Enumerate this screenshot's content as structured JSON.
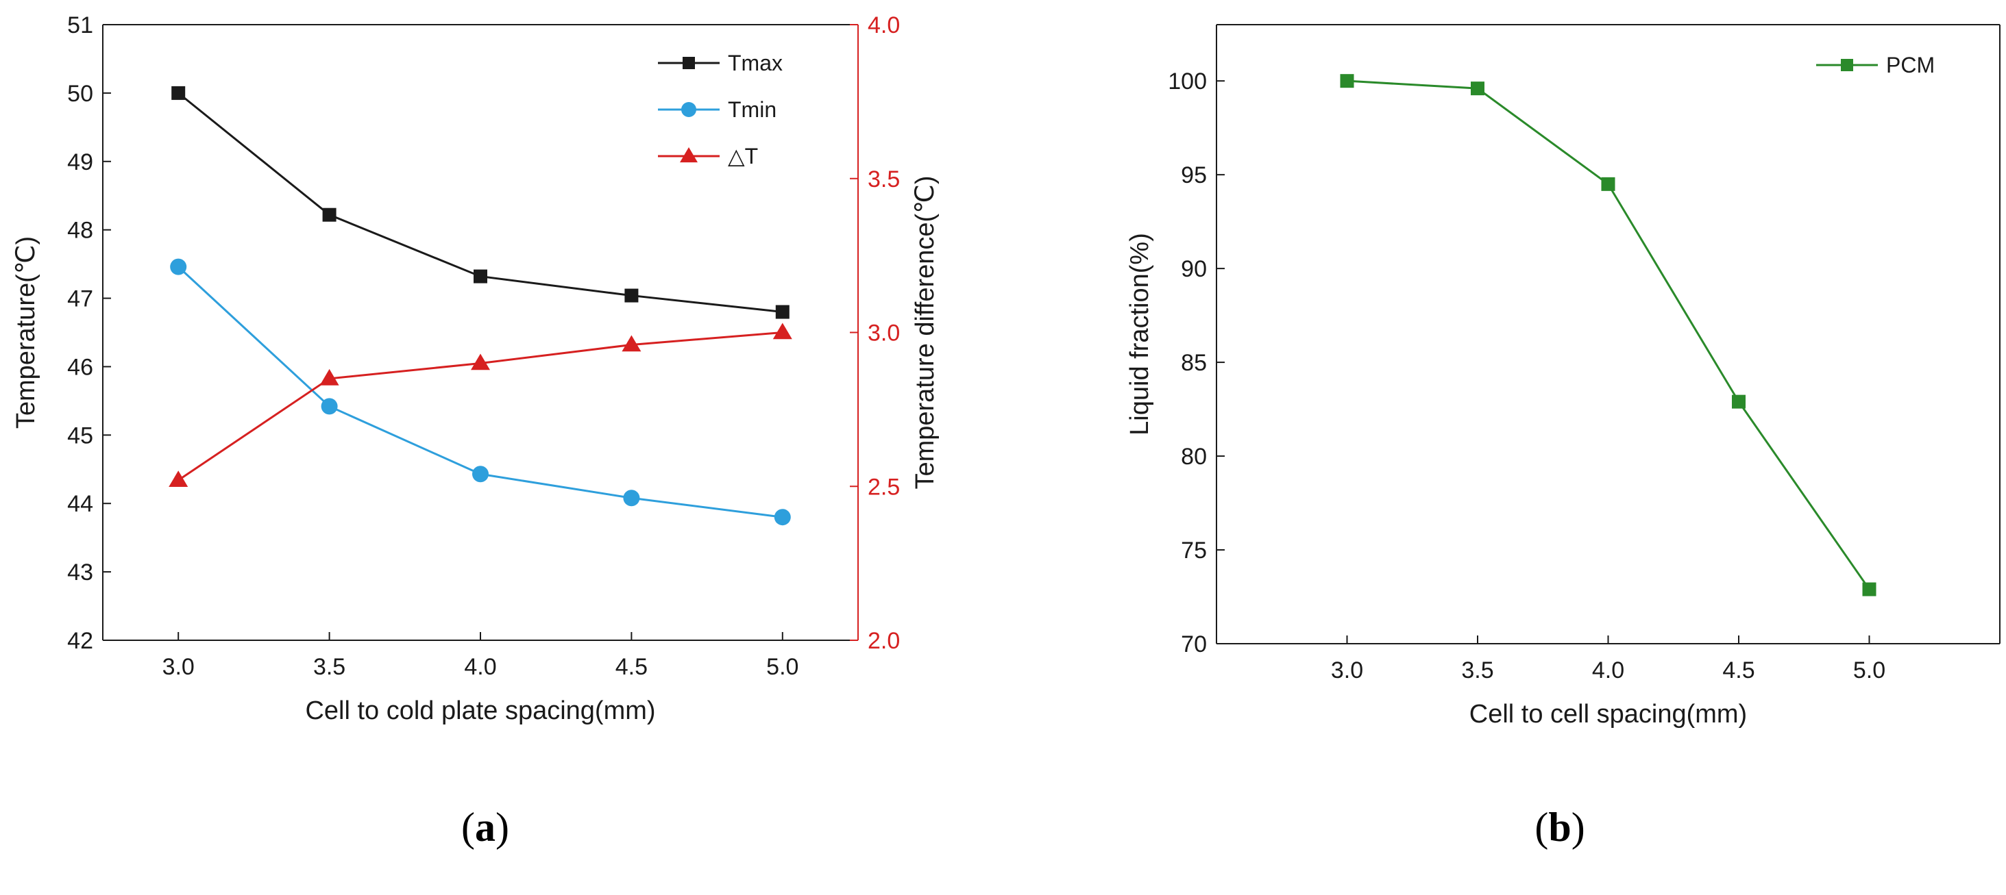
{
  "panels": [
    {
      "label_open": "(",
      "label_letter": "a",
      "label_close": ")"
    },
    {
      "label_open": "(",
      "label_letter": "b",
      "label_close": ")"
    }
  ],
  "chart_data": [
    {
      "type": "line",
      "title": "",
      "xlabel": "Cell to cold plate spacing(mm)",
      "ylabel": "Temperature(℃)",
      "y2label": "Temperature difference(℃)",
      "x": [
        3.0,
        3.5,
        4.0,
        4.5,
        5.0
      ],
      "xticks": [
        "3.0",
        "3.5",
        "4.0",
        "4.5",
        "5.0"
      ],
      "xlim": [
        2.75,
        5.25
      ],
      "ylim": [
        42,
        51
      ],
      "yticks": [
        "42",
        "43",
        "44",
        "45",
        "46",
        "47",
        "48",
        "49",
        "50",
        "51"
      ],
      "y2lim": [
        2.0,
        4.0
      ],
      "y2ticks": [
        "2.0",
        "2.5",
        "3.0",
        "3.5",
        "4.0"
      ],
      "y2color": "#d62020",
      "legend_position": "top-right",
      "grid": false,
      "series": [
        {
          "name": "Tmax",
          "axis": "left",
          "color": "#1a1a1a",
          "marker": "square",
          "values": [
            50.0,
            48.22,
            47.32,
            47.04,
            46.8
          ]
        },
        {
          "name": "Tmin",
          "axis": "left",
          "color": "#2e9fdc",
          "marker": "circle",
          "values": [
            47.46,
            45.42,
            44.43,
            44.08,
            43.8
          ]
        },
        {
          "name": "△T",
          "axis": "right",
          "color": "#d62020",
          "marker": "triangle",
          "values": [
            2.52,
            2.85,
            2.9,
            2.96,
            3.0
          ]
        }
      ]
    },
    {
      "type": "line",
      "title": "",
      "xlabel": "Cell to cell spacing(mm)",
      "ylabel": "Liquid fraction(%)",
      "x": [
        3.0,
        3.5,
        4.0,
        4.5,
        5.0
      ],
      "xticks": [
        "3.0",
        "3.5",
        "4.0",
        "4.5",
        "5.0"
      ],
      "xlim": [
        2.5,
        5.5
      ],
      "ylim": [
        70,
        103
      ],
      "yticks": [
        "70",
        "75",
        "80",
        "85",
        "90",
        "95",
        "100"
      ],
      "legend_position": "top-right",
      "grid": false,
      "series": [
        {
          "name": "PCM",
          "axis": "left",
          "color": "#2a8a2a",
          "marker": "square",
          "values": [
            100.0,
            99.6,
            94.5,
            82.9,
            72.9
          ]
        }
      ]
    }
  ]
}
